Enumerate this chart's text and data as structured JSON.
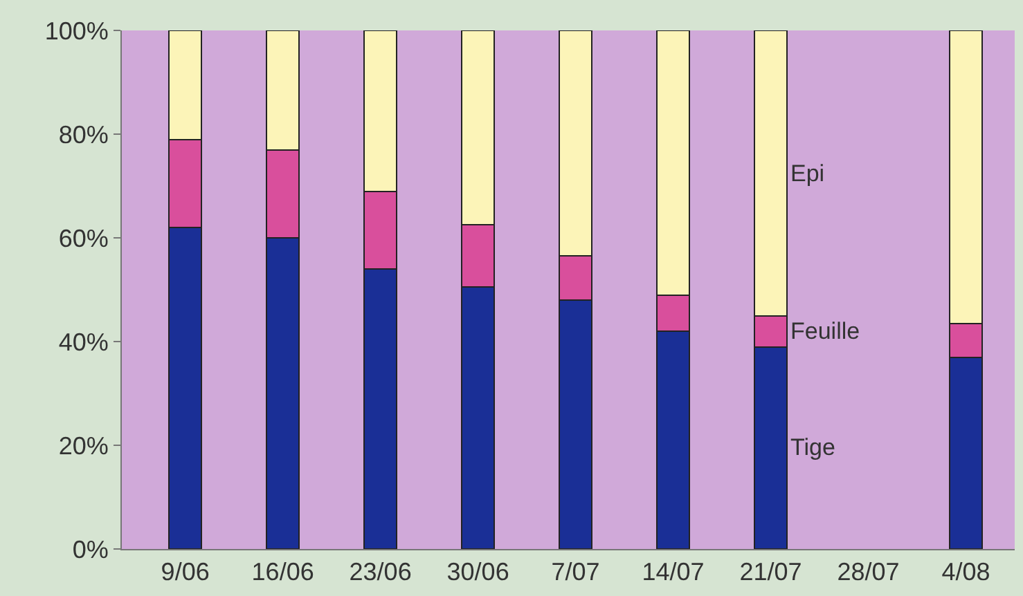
{
  "chart_data": {
    "type": "bar",
    "stacked": true,
    "categories": [
      "9/06",
      "16/06",
      "23/06",
      "30/06",
      "7/07",
      "14/07",
      "21/07",
      "28/07",
      "4/08"
    ],
    "series": [
      {
        "name": "Tige",
        "color": "#1a2f96",
        "values": [
          62,
          60,
          54,
          50.5,
          48,
          42,
          39,
          null,
          37
        ]
      },
      {
        "name": "Feuille",
        "color": "#d94f9c",
        "values": [
          17,
          17,
          15,
          12,
          8.5,
          7,
          6,
          null,
          6.5
        ]
      },
      {
        "name": "Epi",
        "color": "#fcf4b8",
        "values": [
          21,
          23,
          31,
          37.5,
          43.5,
          51,
          55,
          null,
          56.5
        ]
      }
    ],
    "ylim": [
      0,
      100
    ],
    "yticks": [
      {
        "value": 0,
        "label": "0%"
      },
      {
        "value": 20,
        "label": "20%"
      },
      {
        "value": 40,
        "label": "40%"
      },
      {
        "value": 60,
        "label": "60%"
      },
      {
        "value": 80,
        "label": "80%"
      },
      {
        "value": 100,
        "label": "100%"
      }
    ],
    "grid": false,
    "legend": false
  }
}
